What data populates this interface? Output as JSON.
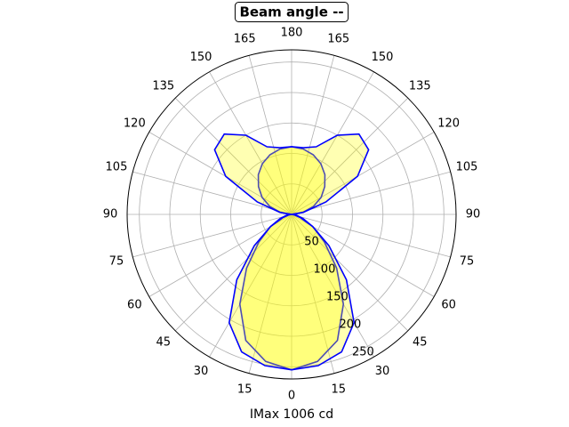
{
  "chart_data": {
    "type": "polar",
    "title": "Beam angle --",
    "xlabel": "IMax 1006 cd",
    "x": [
      0,
      10,
      20,
      30,
      40,
      50,
      60,
      70,
      80,
      90,
      100,
      110,
      120,
      130,
      140,
      150,
      160,
      170,
      180
    ],
    "series": [
      {
        "color": "#0000ff",
        "values": [
          255,
          245,
          220,
          170,
          115,
          70,
          40,
          20,
          8,
          0,
          19,
          38,
          56,
          71,
          85,
          96,
          104,
          109,
          111
        ]
      },
      {
        "color": "#0000ff",
        "values": [
          255,
          252,
          240,
          205,
          140,
          80,
          40,
          15,
          5,
          0,
          20,
          60,
          125,
          165,
          172,
          150,
          118,
          111,
          111
        ]
      }
    ],
    "fill": "#ffff00",
    "rlim": [
      0,
      270
    ],
    "rticks": [
      50,
      100,
      150,
      200,
      250
    ],
    "thetaticks": [
      0,
      15,
      30,
      45,
      60,
      75,
      90,
      105,
      120,
      135,
      150,
      165,
      180,
      {
        "value": 195,
        "label": "165"
      },
      {
        "value": 210,
        "label": "150"
      },
      {
        "value": 225,
        "label": "135"
      },
      {
        "value": 240,
        "label": "120"
      },
      {
        "value": 255,
        "label": "105"
      },
      {
        "value": 270,
        "label": "90"
      },
      {
        "value": 285,
        "label": "75"
      },
      {
        "value": 300,
        "label": "60"
      },
      {
        "value": 315,
        "label": "45"
      },
      {
        "value": 330,
        "label": "30"
      },
      {
        "value": 345,
        "label": "15"
      }
    ],
    "grid": true
  }
}
